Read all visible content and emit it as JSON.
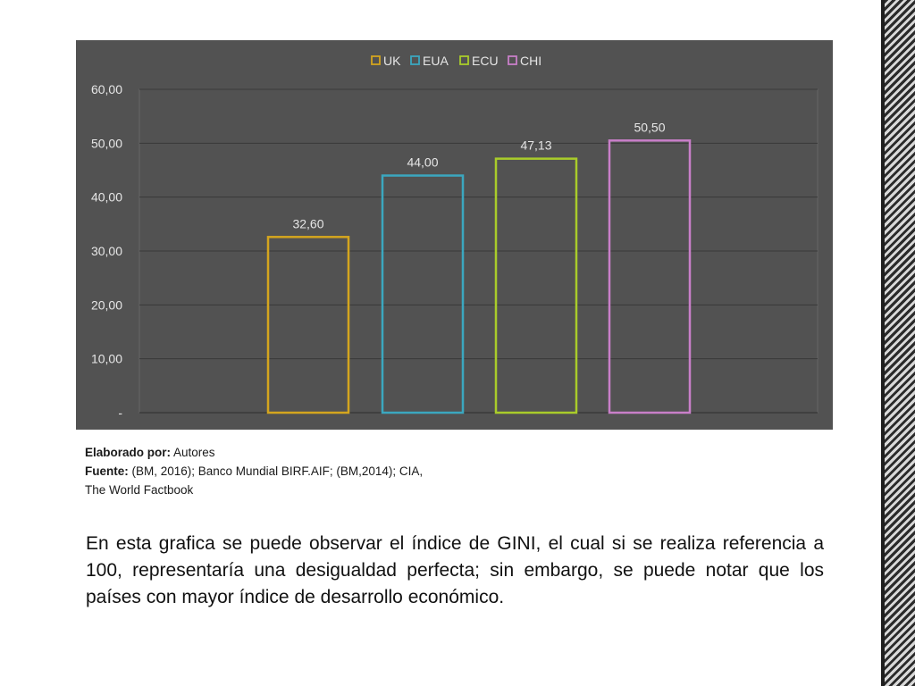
{
  "chart_data": {
    "type": "bar",
    "categories": [
      "UK",
      "EUA",
      "ECU",
      "CHI"
    ],
    "values": [
      32.6,
      44.0,
      47.13,
      50.5
    ],
    "value_labels": [
      "32,60",
      "44,00",
      "47,13",
      "50,50"
    ],
    "colors": {
      "UK": "#d4a51e",
      "EUA": "#3ba7bf",
      "ECU": "#a9cc2a",
      "CHI": "#c97fc9"
    },
    "ylim": [
      0,
      60
    ],
    "yticks": [
      0,
      10,
      20,
      30,
      40,
      50,
      60
    ],
    "ytick_labels": [
      "-",
      "10,00",
      "20,00",
      "30,00",
      "40,00",
      "50,00",
      "60,00"
    ],
    "legend": [
      "UK",
      "EUA",
      "ECU",
      "CHI"
    ],
    "legend_position": "top",
    "grid": true,
    "title": "",
    "xlabel": "",
    "ylabel": ""
  },
  "caption": {
    "made_by_label": "Elaborado por:",
    "made_by_value": " Autores",
    "source_label": "Fuente:",
    "source_value": " (BM, 2016); Banco Mundial BIRF.AIF; (BM,2014); CIA,",
    "source_line2": "The World Factbook"
  },
  "body_text": "En esta grafica se puede observar el índice de GINI, el cual si se realiza referencia a 100, representaría una desigualdad perfecta; sin embargo, se puede notar que los países con mayor índice de desarrollo económico."
}
